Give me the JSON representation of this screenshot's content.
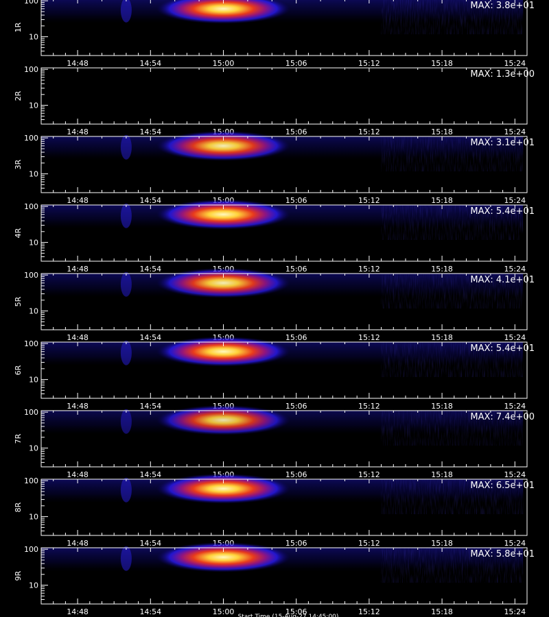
{
  "chart_data": {
    "type": "heatmap",
    "description_free": true,
    "x_ticks": [
      "14:48",
      "14:54",
      "15:00",
      "15:06",
      "15:12",
      "15:18",
      "15:24"
    ],
    "x_range": [
      "14:45",
      "15:25"
    ],
    "y_scale": "log",
    "y_ticks": [
      "100",
      "10"
    ],
    "y_range": [
      3,
      110
    ],
    "grid": false,
    "panels": [
      {
        "label": "1R",
        "max_text": "MAX: 3.8e+01",
        "max": 38,
        "level": 1.0
      },
      {
        "label": "2R",
        "max_text": "MAX: 1.3e+00",
        "max": 1.3,
        "level": 0.0
      },
      {
        "label": "3R",
        "max_text": "MAX: 3.1e+01",
        "max": 31,
        "level": 0.95
      },
      {
        "label": "4R",
        "max_text": "MAX: 5.4e+01",
        "max": 54,
        "level": 1.0
      },
      {
        "label": "5R",
        "max_text": "MAX: 4.1e+01",
        "max": 41,
        "level": 0.95
      },
      {
        "label": "6R",
        "max_text": "MAX: 5.4e+01",
        "max": 54,
        "level": 1.0
      },
      {
        "label": "7R",
        "max_text": "MAX: 7.4e+00",
        "max": 7.4,
        "level": 0.9
      },
      {
        "label": "8R",
        "max_text": "MAX: 6.5e+01",
        "max": 65,
        "level": 1.0
      },
      {
        "label": "9R",
        "max_text": "MAX: 5.8e+01",
        "max": 58,
        "level": 1.0
      }
    ],
    "event": {
      "peak_time": "15:00",
      "start_time": "14:56",
      "end_time": "15:05",
      "peak_y": 60
    },
    "data_gap_after": "15:24"
  },
  "footer": "Start Time (15-Aug-27 14:45:00)",
  "colors": {
    "background": "#000000",
    "axis": "#ffffff",
    "text": "#ffffff"
  }
}
